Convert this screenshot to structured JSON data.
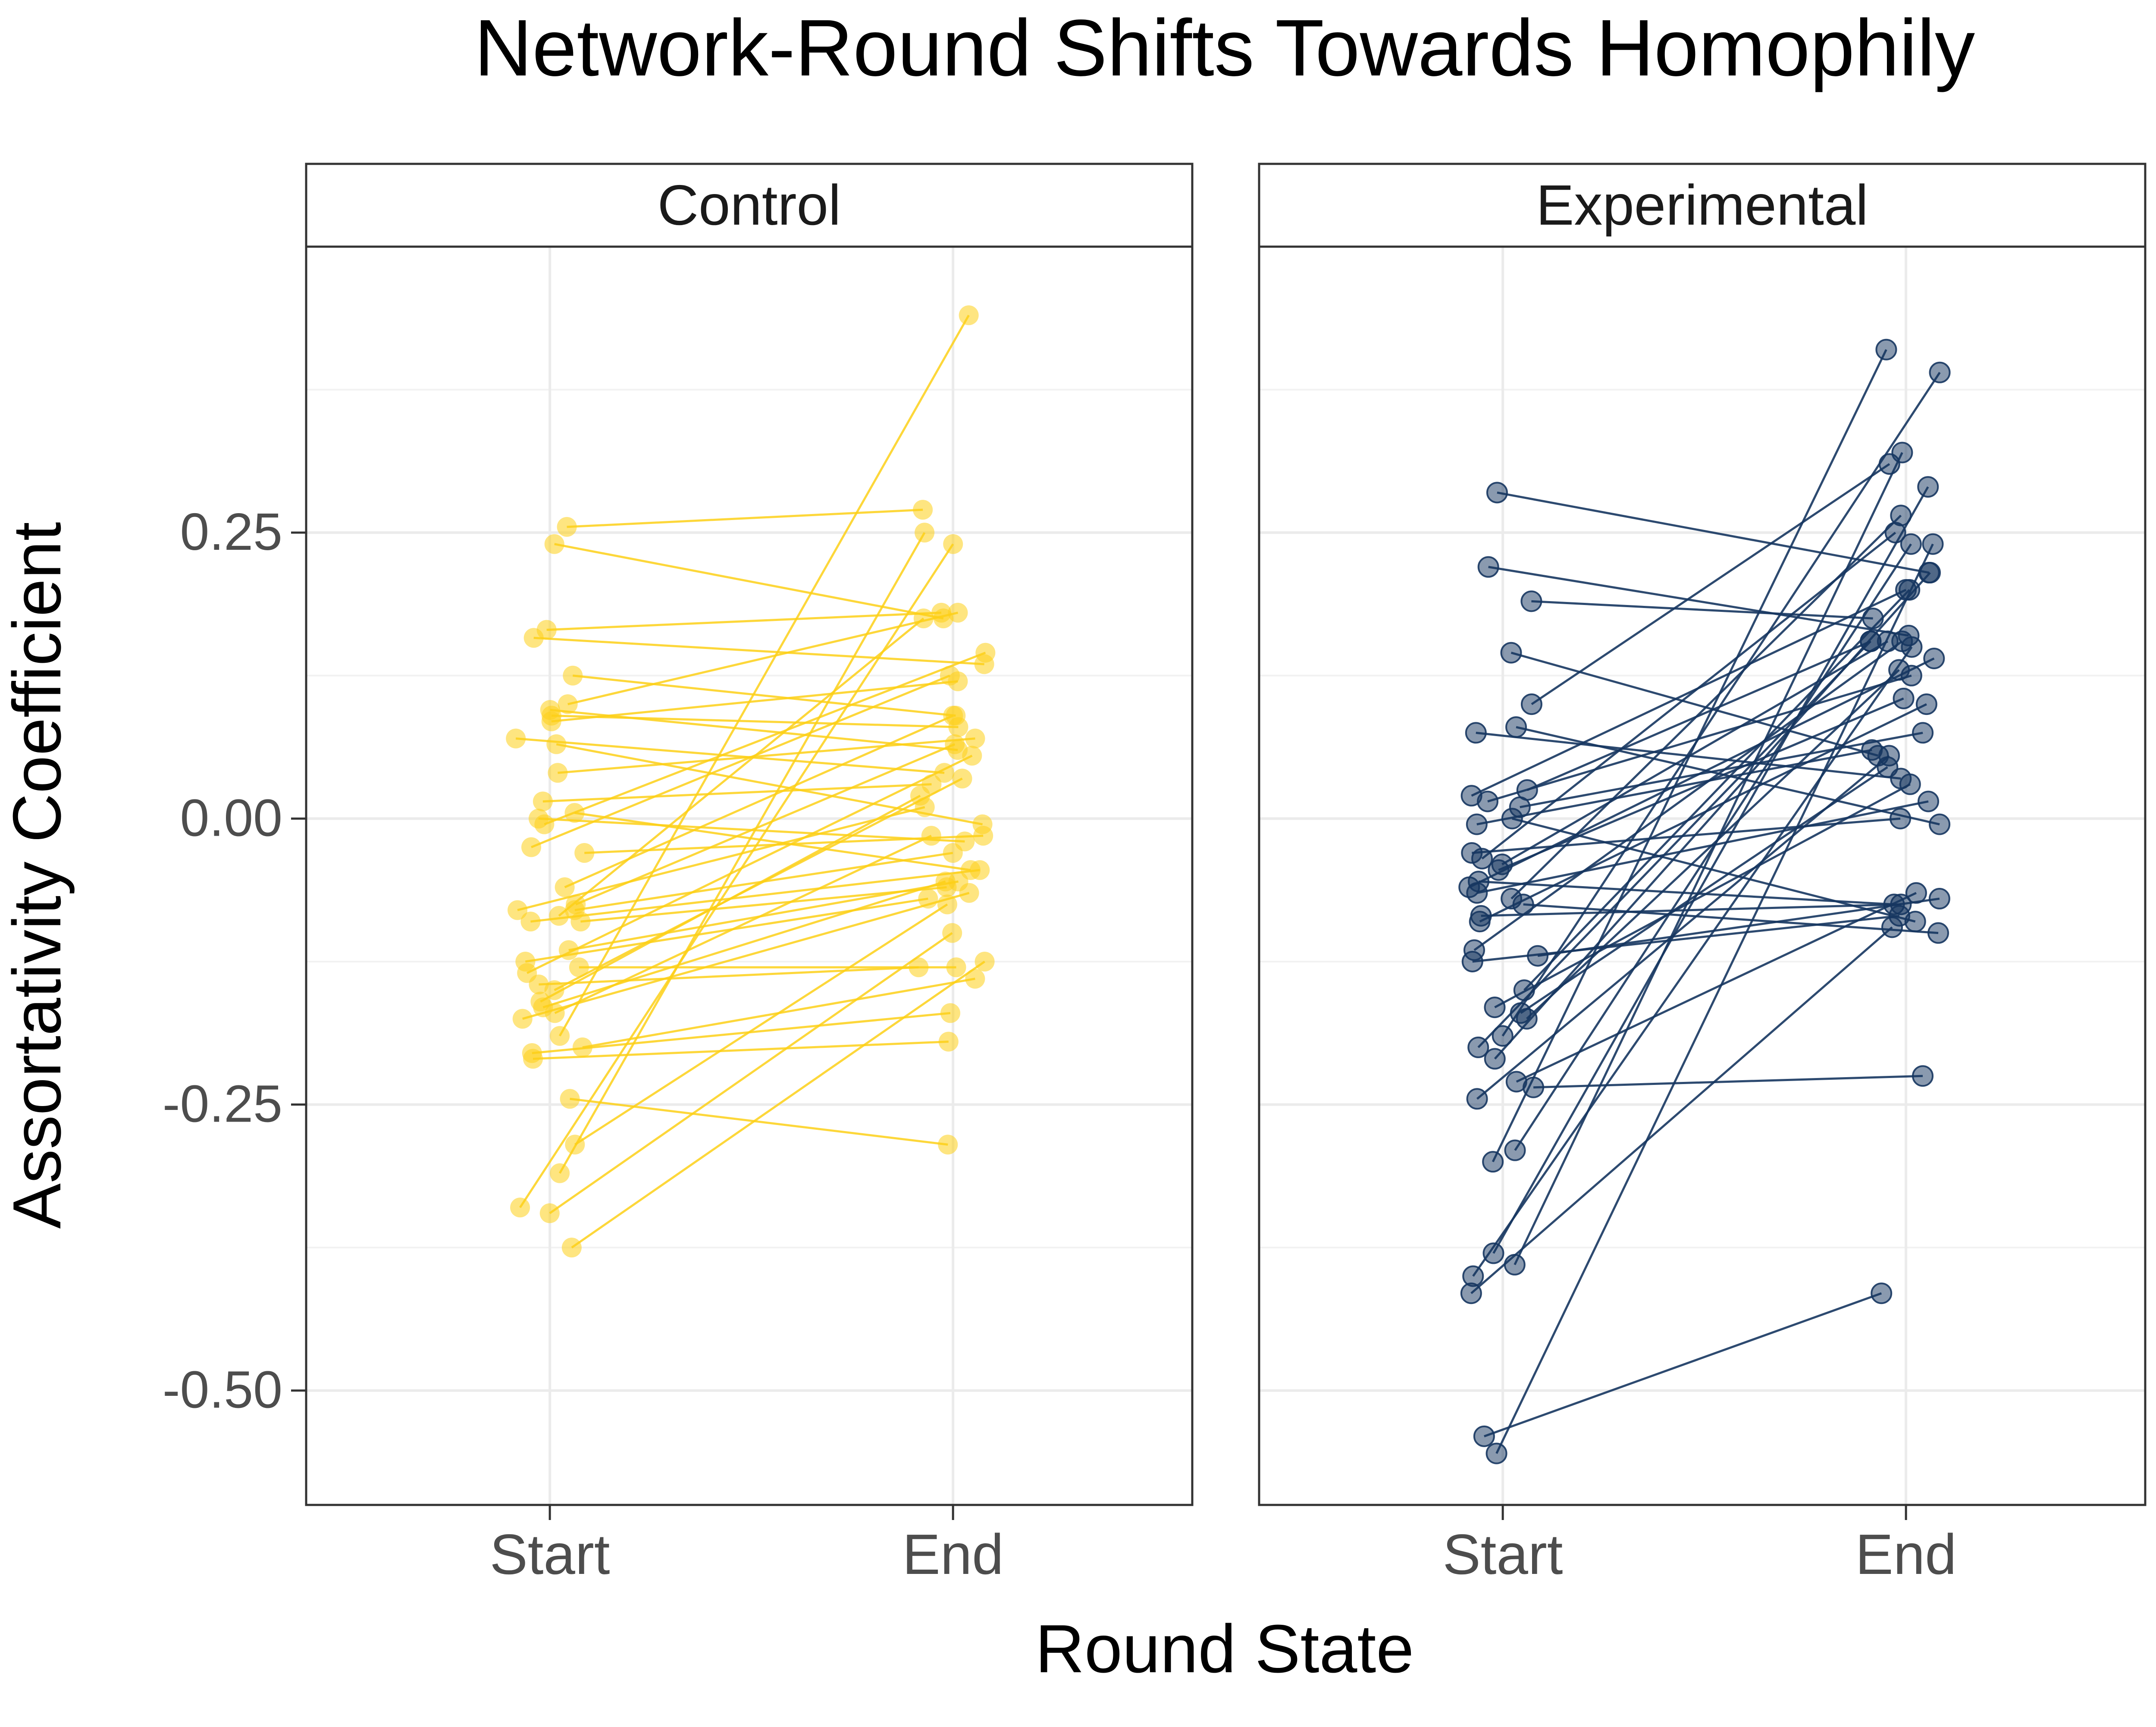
{
  "chart_data": {
    "type": "scatter",
    "title": "Network-Round Shifts Towards Homophily",
    "xlabel": "Round State",
    "ylabel": "Assortativity Coefficient",
    "categories": [
      "Start",
      "End"
    ],
    "ylim": [
      -0.6,
      0.5
    ],
    "y_ticks": [
      0.25,
      0.0,
      -0.25,
      -0.5
    ],
    "y_tick_labels": [
      "0.25",
      "0.00",
      "-0.25",
      "-0.50"
    ],
    "grid": true,
    "legend": "none",
    "colors": {
      "Control": "#FDD017",
      "Experimental": "#163660"
    },
    "panels": [
      {
        "name": "Control",
        "pairs": [
          [
            0.255,
            0.27
          ],
          [
            0.24,
            0.175
          ],
          [
            0.165,
            0.18
          ],
          [
            0.158,
            0.135
          ],
          [
            0.125,
            0.09
          ],
          [
            0.1,
            0.18
          ],
          [
            0.095,
            0.06
          ],
          [
            0.09,
            0.08
          ],
          [
            0.085,
            0.12
          ],
          [
            0.07,
            0.04
          ],
          [
            0.065,
            -0.005
          ],
          [
            0.04,
            0.07
          ],
          [
            0.015,
            0.03
          ],
          [
            0.005,
            -0.045
          ],
          [
            0.0,
            -0.02
          ],
          [
            -0.005,
            0.145
          ],
          [
            -0.025,
            0.125
          ],
          [
            -0.03,
            -0.015
          ],
          [
            -0.06,
            0.09
          ],
          [
            -0.075,
            0.065
          ],
          [
            -0.08,
            -0.03
          ],
          [
            -0.08,
            0.01
          ],
          [
            -0.085,
            0.175
          ],
          [
            -0.09,
            -0.06
          ],
          [
            -0.09,
            -0.045
          ],
          [
            -0.115,
            -0.055
          ],
          [
            -0.125,
            -0.07
          ],
          [
            -0.13,
            -0.13
          ],
          [
            -0.135,
            0.055
          ],
          [
            -0.145,
            -0.13
          ],
          [
            -0.15,
            0.035
          ],
          [
            -0.16,
            0.02
          ],
          [
            -0.165,
            -0.055
          ],
          [
            -0.17,
            -0.015
          ],
          [
            -0.175,
            -0.065
          ],
          [
            -0.19,
            0.44
          ],
          [
            -0.2,
            -0.14
          ],
          [
            -0.205,
            -0.17
          ],
          [
            -0.21,
            -0.195
          ],
          [
            -0.245,
            -0.285
          ],
          [
            -0.285,
            -0.075
          ],
          [
            -0.31,
            0.25
          ],
          [
            -0.34,
            0.24
          ],
          [
            -0.345,
            -0.1
          ],
          [
            -0.375,
            -0.125
          ]
        ]
      },
      {
        "name": "Experimental",
        "pairs": [
          [
            0.285,
            0.215
          ],
          [
            0.22,
            0.16
          ],
          [
            0.19,
            0.175
          ],
          [
            0.145,
            0.055
          ],
          [
            0.1,
            0.31
          ],
          [
            0.08,
            -0.005
          ],
          [
            0.075,
            0.035
          ],
          [
            0.025,
            0.155
          ],
          [
            0.02,
            0.2
          ],
          [
            0.015,
            0.125
          ],
          [
            0.01,
            0.075
          ],
          [
            0.0,
            -0.09
          ],
          [
            -0.005,
            0.06
          ],
          [
            -0.03,
            0.0
          ],
          [
            -0.035,
            0.25
          ],
          [
            -0.04,
            0.155
          ],
          [
            -0.045,
            0.105
          ],
          [
            -0.055,
            -0.075
          ],
          [
            -0.06,
            0.14
          ],
          [
            -0.065,
            0.015
          ],
          [
            -0.07,
            0.265
          ],
          [
            -0.075,
            -0.1
          ],
          [
            -0.085,
            -0.075
          ],
          [
            -0.09,
            0.1
          ],
          [
            -0.115,
            0.155
          ],
          [
            -0.12,
            -0.07
          ],
          [
            -0.125,
            -0.085
          ],
          [
            -0.15,
            0.2
          ],
          [
            -0.165,
            0.03
          ],
          [
            -0.17,
            0.045
          ],
          [
            -0.175,
            0.13
          ],
          [
            -0.19,
            0.39
          ],
          [
            -0.2,
            0.155
          ],
          [
            -0.21,
            0.215
          ],
          [
            -0.23,
            -0.065
          ],
          [
            -0.235,
            -0.225
          ],
          [
            -0.245,
            0.055
          ],
          [
            -0.29,
            0.24
          ],
          [
            -0.3,
            0.41
          ],
          [
            -0.38,
            0.29
          ],
          [
            -0.39,
            0.32
          ],
          [
            -0.4,
            0.15
          ],
          [
            -0.415,
            -0.095
          ],
          [
            -0.54,
            -0.415
          ],
          [
            -0.555,
            0.24
          ]
        ]
      }
    ]
  }
}
